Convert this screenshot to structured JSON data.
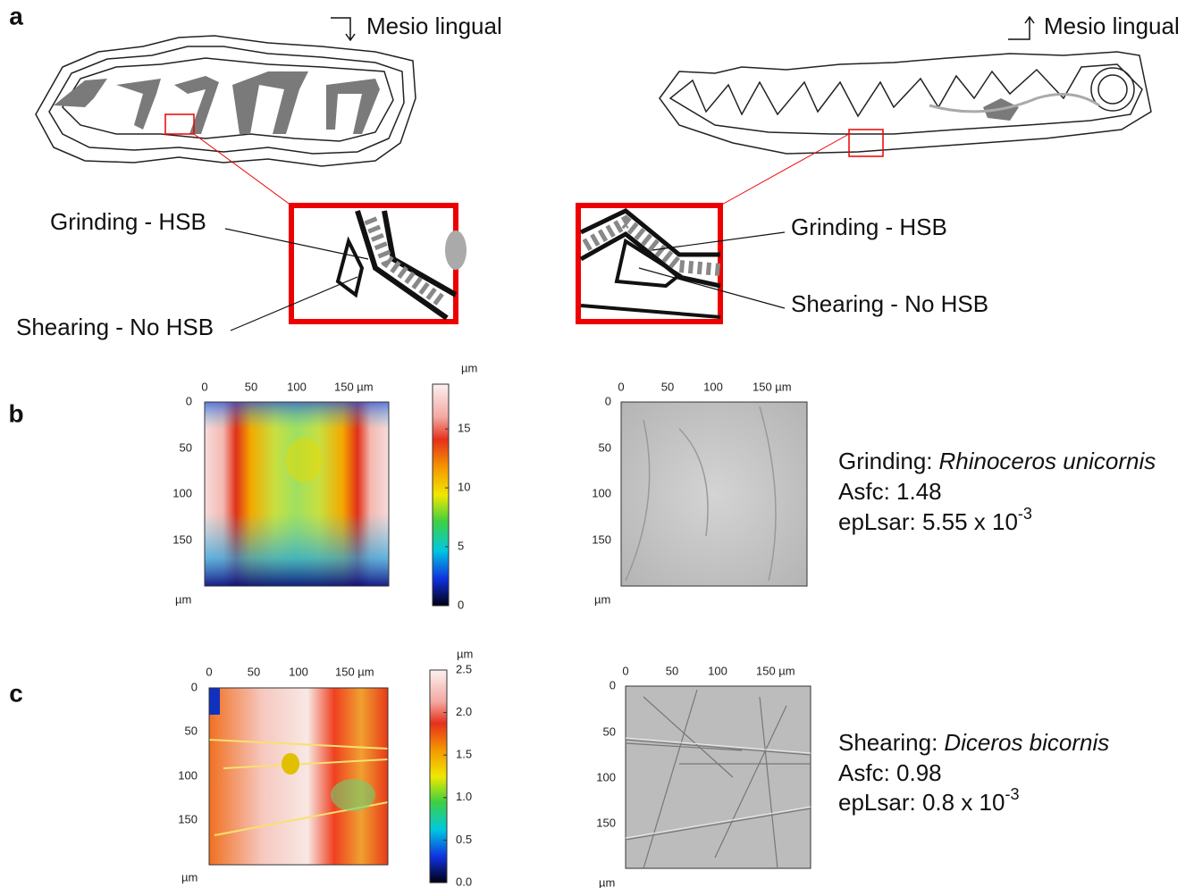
{
  "panel_labels": [
    "a",
    "b",
    "c"
  ],
  "orientation": [
    "Mesio lingual",
    "Mesio lingual"
  ],
  "callouts": [
    {
      "grinding": "Grinding - HSB",
      "shearing": "Shearing - No HSB"
    },
    {
      "grinding": "Grinding - HSB",
      "shearing": "Shearing - No HSB"
    }
  ],
  "height_maps": [
    {
      "top_ticks": [
        "0",
        "50",
        "100",
        "150 µm"
      ],
      "left_ticks": [
        "0",
        "50",
        "100",
        "150"
      ],
      "unit": "µm",
      "colorbar_unit": "µm",
      "colorbar_ticks": [
        "0",
        "5",
        "10",
        "15"
      ]
    },
    {
      "top_ticks": [
        "0",
        "50",
        "100",
        "150 µm"
      ],
      "left_ticks": [
        "0",
        "50",
        "100",
        "150"
      ],
      "unit": "µm",
      "colorbar_unit": "µm",
      "colorbar_ticks": [
        "0.0",
        "0.5",
        "1.0",
        "1.5",
        "2.0",
        "2.5"
      ]
    }
  ],
  "gray_maps": [
    {
      "top_ticks": [
        "0",
        "50",
        "100",
        "150 µm"
      ],
      "left_ticks": [
        "0",
        "50",
        "100",
        "150"
      ],
      "unit": "µm"
    },
    {
      "top_ticks": [
        "0",
        "50",
        "100",
        "150 µm"
      ],
      "left_ticks": [
        "0",
        "50",
        "100",
        "150"
      ],
      "unit": "µm"
    }
  ],
  "results": [
    {
      "mode": "Grinding:",
      "species": "Rhinoceros unicornis",
      "asfc": "Asfc: 1.48",
      "eplsar": "epLsar: 5.55 x 10",
      "exponent": "-3"
    },
    {
      "mode": "Shearing:",
      "species": "Diceros bicornis",
      "asfc": "Asfc: 0.98",
      "eplsar": "epLsar: 0.8 x 10",
      "exponent": "-3"
    }
  ]
}
